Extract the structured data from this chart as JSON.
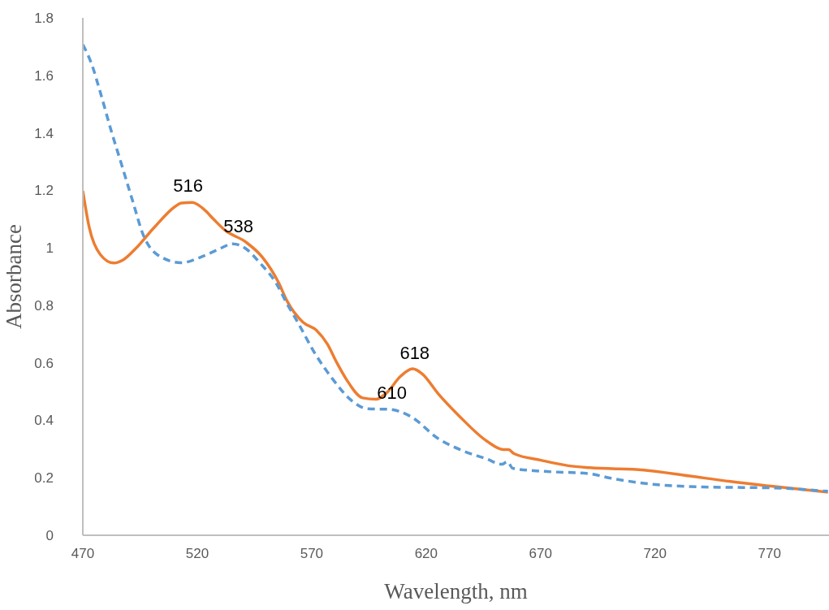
{
  "chart_data": {
    "type": "line",
    "xlabel": "Wavelength, nm",
    "ylabel": "Absorbance",
    "xlim": [
      470,
      796
    ],
    "xticks": [
      470,
      520,
      570,
      620,
      670,
      720,
      770
    ],
    "ylim": [
      0,
      1.8
    ],
    "yticks": [
      0,
      0.2,
      0.4,
      0.6,
      0.8,
      1,
      1.2,
      1.4,
      1.6,
      1.8
    ],
    "grid": false,
    "legend": false,
    "series": [
      {
        "color": "#ed7d31",
        "line_style": "solid",
        "x": [
          470,
          472.8,
          477.6,
          483.5,
          487.6,
          492.9,
          501.2,
          510.7,
          513,
          517.8,
          522.5,
          527.2,
          532,
          541.4,
          548.5,
          555.6,
          559.1,
          566.2,
          572.1,
          576.8,
          581,
          585.1,
          592.2,
          598.1,
          602.9,
          608.8,
          614.1,
          618.2,
          625.3,
          634.8,
          646.6,
          653.7,
          656,
          658.4,
          670.2,
          682.1,
          691.5,
          715.1,
          735.2,
          753,
          770.7,
          795.5
        ],
        "values": [
          1.198,
          1.071,
          0.977,
          0.947,
          0.958,
          0.996,
          1.071,
          1.146,
          1.156,
          1.158,
          1.137,
          1.099,
          1.062,
          1.019,
          0.967,
          0.878,
          0.817,
          0.741,
          0.713,
          0.666,
          0.6,
          0.543,
          0.478,
          0.473,
          0.497,
          0.553,
          0.579,
          0.562,
          0.492,
          0.412,
          0.327,
          0.298,
          0.298,
          0.284,
          0.261,
          0.242,
          0.235,
          0.227,
          0.206,
          0.187,
          0.171,
          0.15
        ]
      },
      {
        "color": "#5b9bd5",
        "line_style": "dashed",
        "x": [
          470,
          474,
          477.6,
          482.3,
          487,
          491.7,
          496.5,
          502.4,
          513,
          521.3,
          529.6,
          535.5,
          541.4,
          547.3,
          554.4,
          559.1,
          563.9,
          571,
          579.2,
          587.5,
          594.6,
          604,
          613.5,
          625.3,
          634.8,
          646.6,
          653.1,
          655.5,
          657.8,
          670.2,
          691.5,
          699.8,
          715.1,
          741.2,
          770.7,
          795.5
        ],
        "values": [
          1.707,
          1.636,
          1.542,
          1.41,
          1.288,
          1.165,
          1.043,
          0.977,
          0.948,
          0.967,
          0.996,
          1.014,
          0.996,
          0.948,
          0.878,
          0.807,
          0.741,
          0.638,
          0.543,
          0.468,
          0.44,
          0.438,
          0.412,
          0.336,
          0.298,
          0.265,
          0.247,
          0.256,
          0.233,
          0.223,
          0.214,
          0.2,
          0.181,
          0.168,
          0.165,
          0.153
        ]
      }
    ],
    "annotations": [
      {
        "text": "516",
        "x": 516,
        "y": 1.16
      },
      {
        "text": "538",
        "x": 538,
        "y": 1.02
      },
      {
        "text": "618",
        "x": 615,
        "y": 0.58
      },
      {
        "text": "610",
        "x": 605,
        "y": 0.44
      }
    ]
  }
}
